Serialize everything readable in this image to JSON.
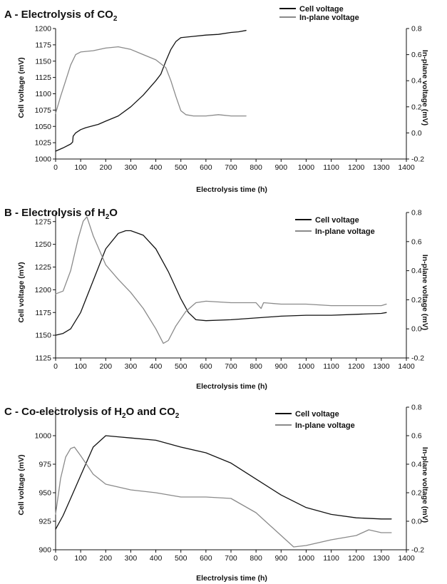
{
  "chart_data": [
    {
      "type": "line",
      "title_main": "A - Electrolysis of CO",
      "title_sub": "2",
      "title_tail": "",
      "xlabel": "Electrolysis time (h)",
      "ylabel": "Cell voltage (mV)",
      "y2label": "In-plane voltage (mV)",
      "xlim": [
        0,
        1400
      ],
      "xticks": [
        0,
        100,
        200,
        300,
        400,
        500,
        600,
        700,
        800,
        900,
        1000,
        1100,
        1200,
        1300,
        1400
      ],
      "ylim": [
        1000,
        1200
      ],
      "yticks": [
        1000,
        1025,
        1050,
        1075,
        1100,
        1125,
        1150,
        1175,
        1200
      ],
      "y2lim": [
        -0.2,
        0.8
      ],
      "y2ticks": [
        -0.2,
        0.0,
        0.2,
        0.4,
        0.6,
        0.8
      ],
      "legend_position": "top-right",
      "grid": false,
      "series": [
        {
          "name": "Cell voltage",
          "axis": "left",
          "color": "#111111",
          "x": [
            0,
            30,
            60,
            68,
            70,
            80,
            100,
            120,
            140,
            160,
            170,
            200,
            250,
            300,
            350,
            400,
            420,
            440,
            460,
            480,
            500,
            550,
            600,
            650,
            700,
            730,
            760
          ],
          "y": [
            1012,
            1017,
            1023,
            1026,
            1035,
            1040,
            1045,
            1048,
            1050,
            1052,
            1053,
            1058,
            1066,
            1080,
            1098,
            1120,
            1130,
            1150,
            1168,
            1180,
            1186,
            1188,
            1190,
            1191,
            1194,
            1195,
            1197
          ]
        },
        {
          "name": "In-plane voltage",
          "axis": "right",
          "color": "#8a8a8a",
          "x": [
            0,
            20,
            40,
            60,
            80,
            100,
            150,
            200,
            250,
            300,
            350,
            400,
            420,
            440,
            460,
            480,
            500,
            520,
            550,
            600,
            650,
            700,
            760
          ],
          "y": [
            0.15,
            0.28,
            0.4,
            0.52,
            0.6,
            0.62,
            0.63,
            0.65,
            0.66,
            0.64,
            0.6,
            0.56,
            0.53,
            0.5,
            0.4,
            0.28,
            0.17,
            0.14,
            0.13,
            0.13,
            0.14,
            0.13,
            0.13
          ]
        }
      ]
    },
    {
      "type": "line",
      "title_main": "B - Electrolysis of H",
      "title_sub": "2",
      "title_tail": "O",
      "xlabel": "Electrolysis time (h)",
      "ylabel": "Cell voltage (mV)",
      "y2label": "In-plane voltage (mV)",
      "xlim": [
        0,
        1400
      ],
      "xticks": [
        0,
        100,
        200,
        300,
        400,
        500,
        600,
        700,
        800,
        900,
        1000,
        1100,
        1200,
        1300,
        1400
      ],
      "ylim": [
        1125,
        1285
      ],
      "yticks": [
        1125,
        1150,
        1175,
        1200,
        1225,
        1250,
        1275
      ],
      "y2lim": [
        -0.2,
        0.8
      ],
      "y2ticks": [
        -0.2,
        0.0,
        0.2,
        0.4,
        0.6,
        0.8
      ],
      "legend_position": "top-right",
      "grid": false,
      "series": [
        {
          "name": "Cell voltage",
          "axis": "left",
          "color": "#111111",
          "x": [
            0,
            30,
            60,
            100,
            150,
            200,
            250,
            280,
            300,
            350,
            400,
            450,
            500,
            530,
            560,
            600,
            700,
            800,
            900,
            1000,
            1100,
            1200,
            1300,
            1320
          ],
          "y": [
            1150,
            1152,
            1157,
            1175,
            1210,
            1245,
            1262,
            1265,
            1265,
            1260,
            1245,
            1220,
            1190,
            1175,
            1167,
            1166,
            1167,
            1169,
            1171,
            1172,
            1172,
            1173,
            1174,
            1175
          ],
          "x_plot_override": null
        },
        {
          "name": "In-plane voltage",
          "axis": "right",
          "color": "#8a8a8a",
          "x": [
            0,
            30,
            60,
            90,
            110,
            125,
            150,
            200,
            250,
            300,
            350,
            400,
            430,
            450,
            480,
            520,
            560,
            600,
            700,
            800,
            820,
            830,
            900,
            1000,
            1100,
            1200,
            1300,
            1320
          ],
          "y": [
            0.24,
            0.26,
            0.4,
            0.62,
            0.74,
            0.77,
            0.64,
            0.44,
            0.34,
            0.25,
            0.14,
            0.0,
            -0.1,
            -0.08,
            0.02,
            0.12,
            0.18,
            0.19,
            0.18,
            0.18,
            0.14,
            0.18,
            0.17,
            0.17,
            0.16,
            0.16,
            0.16,
            0.17
          ]
        }
      ]
    },
    {
      "type": "line",
      "title_main": "C - Co-electrolysis of H",
      "title_sub": "2",
      "title_tail": "O and CO",
      "title_sub2": "2",
      "xlabel": "Electrolysis time (h)",
      "ylabel": "Cell voltage (mV)",
      "y2label": "In-plane voltage (mV)",
      "xlim": [
        0,
        1400
      ],
      "xticks": [
        0,
        100,
        200,
        300,
        400,
        500,
        600,
        700,
        800,
        900,
        1000,
        1100,
        1200,
        1300,
        1400
      ],
      "ylim": [
        900,
        1025
      ],
      "yticks": [
        900,
        925,
        950,
        975,
        1000
      ],
      "y2lim": [
        -0.2,
        0.8
      ],
      "y2ticks": [
        -0.2,
        0.0,
        0.2,
        0.4,
        0.6,
        0.8
      ],
      "legend_position": "top-right",
      "grid": false,
      "series": [
        {
          "name": "Cell voltage",
          "axis": "left",
          "color": "#111111",
          "x": [
            0,
            30,
            60,
            100,
            150,
            200,
            250,
            300,
            400,
            500,
            600,
            700,
            800,
            900,
            1000,
            1100,
            1200,
            1300,
            1340
          ],
          "y": [
            918,
            930,
            945,
            965,
            990,
            1000,
            999,
            998,
            996,
            990,
            985,
            976,
            962,
            948,
            937,
            931,
            928,
            927,
            927
          ]
        },
        {
          "name": "In-plane voltage",
          "axis": "right",
          "color": "#8a8a8a",
          "x": [
            0,
            20,
            40,
            60,
            75,
            100,
            150,
            200,
            300,
            400,
            500,
            600,
            700,
            800,
            900,
            950,
            1000,
            1100,
            1200,
            1250,
            1300,
            1340
          ],
          "y": [
            0.05,
            0.3,
            0.45,
            0.51,
            0.52,
            0.46,
            0.33,
            0.26,
            0.22,
            0.2,
            0.17,
            0.17,
            0.16,
            0.06,
            -0.1,
            -0.18,
            -0.17,
            -0.13,
            -0.1,
            -0.06,
            -0.08,
            -0.08
          ]
        }
      ]
    }
  ]
}
